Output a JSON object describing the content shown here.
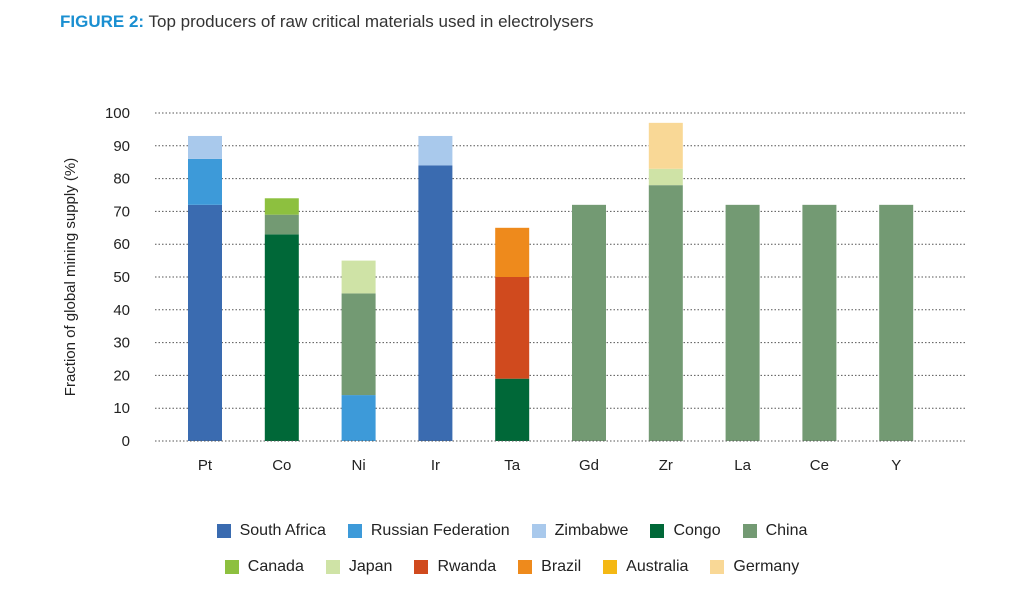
{
  "figure": {
    "label": "FIGURE 2:",
    "text": "Top producers of raw critical materials used in electrolysers"
  },
  "chart_data": {
    "type": "bar",
    "stacked": true,
    "title": "Top producers of raw critical materials used in electrolysers",
    "xlabel": "",
    "ylabel": "Fraction of global mining supply (%)",
    "ylim": [
      0,
      100
    ],
    "yticks": [
      0,
      10,
      20,
      30,
      40,
      50,
      60,
      70,
      80,
      90,
      100
    ],
    "grid": true,
    "legend_position": "bottom",
    "categories": [
      "Pt",
      "Co",
      "Ni",
      "Ir",
      "Ta",
      "Gd",
      "Zr",
      "La",
      "Ce",
      "Y"
    ],
    "series": [
      {
        "name": "South Africa",
        "color": "#3a6bb0",
        "values": [
          72,
          0,
          0,
          84,
          0,
          0,
          0,
          0,
          0,
          0
        ]
      },
      {
        "name": "Russian Federation",
        "color": "#3d9ad9",
        "values": [
          14,
          0,
          14,
          0,
          0,
          0,
          0,
          0,
          0,
          0
        ]
      },
      {
        "name": "Zimbabwe",
        "color": "#a9c9ec",
        "values": [
          7,
          0,
          0,
          9,
          0,
          0,
          0,
          0,
          0,
          0
        ]
      },
      {
        "name": "Congo",
        "color": "#006838",
        "values": [
          0,
          63,
          0,
          0,
          19,
          0,
          0,
          0,
          0,
          0
        ]
      },
      {
        "name": "China",
        "color": "#739a73",
        "values": [
          0,
          6,
          31,
          0,
          0,
          72,
          78,
          72,
          72,
          72
        ]
      },
      {
        "name": "Canada",
        "color": "#8dc03f",
        "values": [
          0,
          5,
          0,
          0,
          0,
          0,
          0,
          0,
          0,
          0
        ]
      },
      {
        "name": "Japan",
        "color": "#cfe3a6",
        "values": [
          0,
          0,
          10,
          0,
          0,
          0,
          5,
          0,
          0,
          0
        ]
      },
      {
        "name": "Rwanda",
        "color": "#d04a1e",
        "values": [
          0,
          0,
          0,
          0,
          31,
          0,
          0,
          0,
          0,
          0
        ]
      },
      {
        "name": "Brazil",
        "color": "#ee8a1c",
        "values": [
          0,
          0,
          0,
          0,
          15,
          0,
          0,
          0,
          0,
          0
        ]
      },
      {
        "name": "Australia",
        "color": "#f4b814",
        "values": [
          0,
          0,
          0,
          0,
          0,
          0,
          0,
          0,
          0,
          0
        ]
      },
      {
        "name": "Germany",
        "color": "#f9d896",
        "values": [
          0,
          0,
          0,
          0,
          0,
          0,
          14,
          0,
          0,
          0
        ]
      }
    ]
  }
}
